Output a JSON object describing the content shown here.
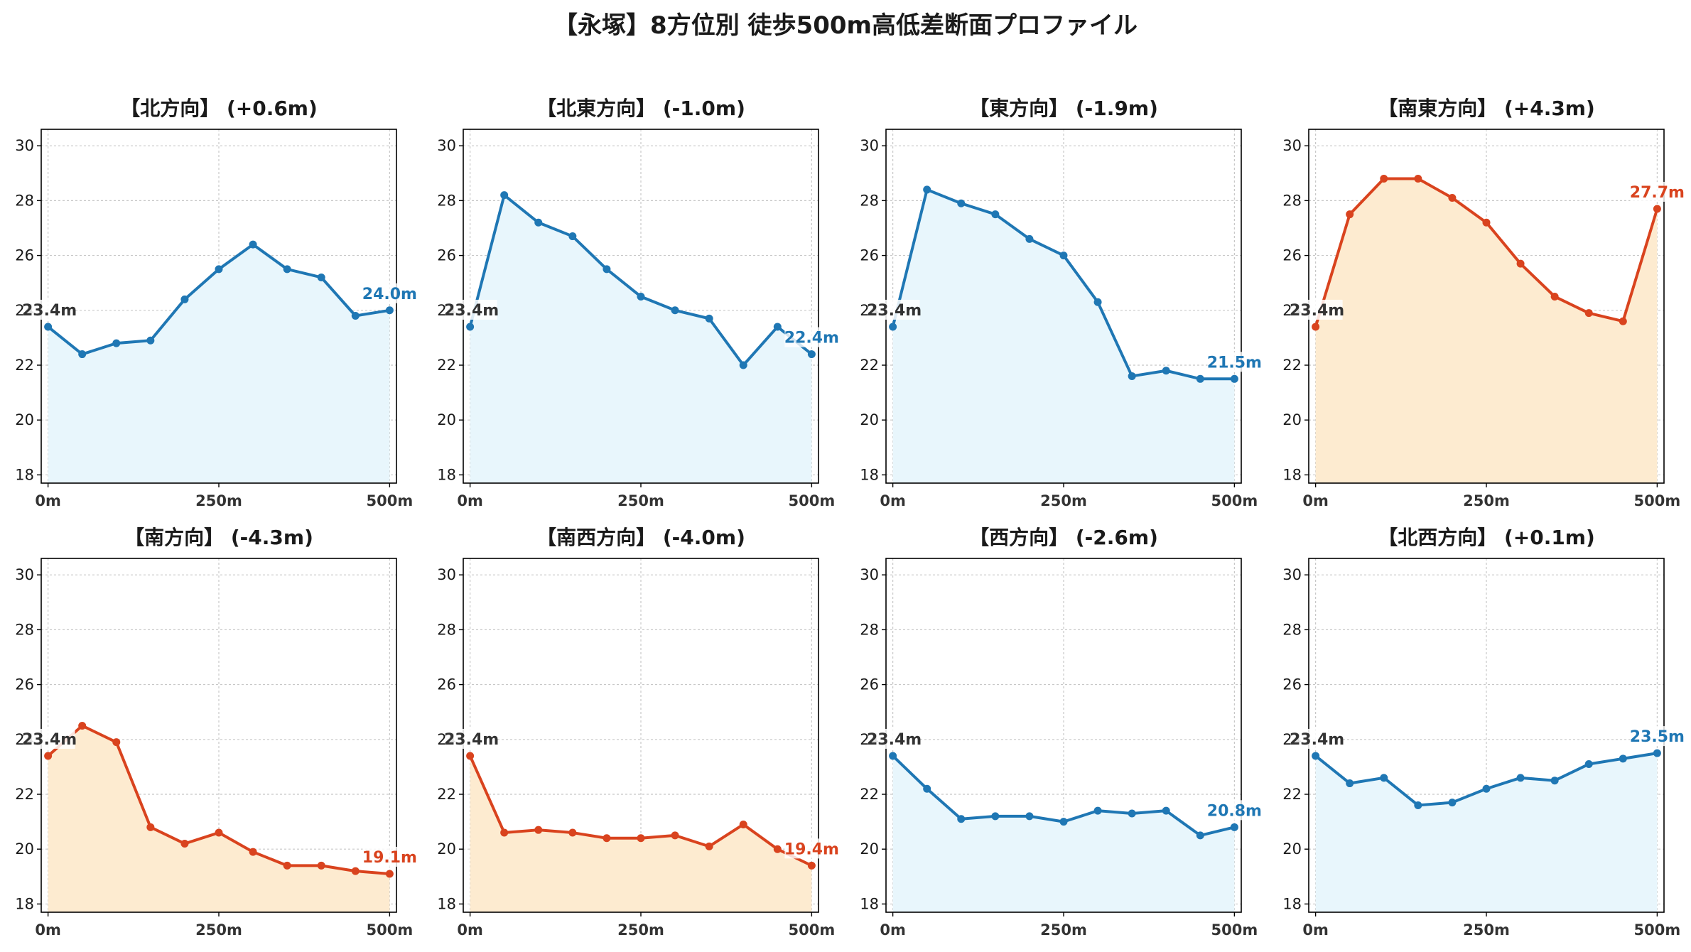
{
  "title": "【永塚】8方位別 徒歩500m高低差断面プロファイル",
  "colors": {
    "up_line": "#1f77b4",
    "up_fill": "#e8f6fc",
    "down_line": "#d9431e",
    "down_fill": "#fdebd0",
    "start_label": "#333333"
  },
  "chart_data": [
    {
      "type": "area",
      "title": "【北方向】 (+0.6m)",
      "theme": "blue",
      "x": [
        0,
        50,
        100,
        150,
        200,
        250,
        300,
        350,
        400,
        450,
        500
      ],
      "y": [
        23.4,
        22.4,
        22.8,
        22.9,
        24.4,
        25.5,
        26.4,
        25.5,
        25.2,
        23.8,
        24.0
      ],
      "xticks": [
        "0m",
        "250m",
        "500m"
      ],
      "yticks": [
        "18",
        "20",
        "22",
        "24",
        "26",
        "28",
        "30"
      ],
      "ylim": [
        17.7,
        30.6
      ],
      "start_label": "23.4m",
      "end_label": "24.0m",
      "grid": true
    },
    {
      "type": "area",
      "title": "【北東方向】 (-1.0m)",
      "theme": "blue",
      "x": [
        0,
        50,
        100,
        150,
        200,
        250,
        300,
        350,
        400,
        450,
        500
      ],
      "y": [
        23.4,
        28.2,
        27.2,
        26.7,
        25.5,
        24.5,
        24.0,
        23.7,
        22.0,
        23.4,
        22.4
      ],
      "xticks": [
        "0m",
        "250m",
        "500m"
      ],
      "yticks": [
        "18",
        "20",
        "22",
        "24",
        "26",
        "28",
        "30"
      ],
      "ylim": [
        17.7,
        30.6
      ],
      "start_label": "23.4m",
      "end_label": "22.4m",
      "grid": true
    },
    {
      "type": "area",
      "title": "【東方向】 (-1.9m)",
      "theme": "blue",
      "x": [
        0,
        50,
        100,
        150,
        200,
        250,
        300,
        350,
        400,
        450,
        500
      ],
      "y": [
        23.4,
        28.4,
        27.9,
        27.5,
        26.6,
        26.0,
        24.3,
        21.6,
        21.8,
        21.5,
        21.5
      ],
      "xticks": [
        "0m",
        "250m",
        "500m"
      ],
      "yticks": [
        "18",
        "20",
        "22",
        "24",
        "26",
        "28",
        "30"
      ],
      "ylim": [
        17.7,
        30.6
      ],
      "start_label": "23.4m",
      "end_label": "21.5m",
      "grid": true
    },
    {
      "type": "area",
      "title": "【南東方向】 (+4.3m)",
      "theme": "orange",
      "x": [
        0,
        50,
        100,
        150,
        200,
        250,
        300,
        350,
        400,
        450,
        500
      ],
      "y": [
        23.4,
        27.5,
        28.8,
        28.8,
        28.1,
        27.2,
        25.7,
        24.5,
        23.9,
        23.6,
        27.7
      ],
      "xticks": [
        "0m",
        "250m",
        "500m"
      ],
      "yticks": [
        "18",
        "20",
        "22",
        "24",
        "26",
        "28",
        "30"
      ],
      "ylim": [
        17.7,
        30.6
      ],
      "start_label": "23.4m",
      "end_label": "27.7m",
      "grid": true
    },
    {
      "type": "area",
      "title": "【南方向】 (-4.3m)",
      "theme": "orange",
      "x": [
        0,
        50,
        100,
        150,
        200,
        250,
        300,
        350,
        400,
        450,
        500
      ],
      "y": [
        23.4,
        24.5,
        23.9,
        20.8,
        20.2,
        20.6,
        19.9,
        19.4,
        19.4,
        19.2,
        19.1
      ],
      "xticks": [
        "0m",
        "250m",
        "500m"
      ],
      "yticks": [
        "18",
        "20",
        "22",
        "24",
        "26",
        "28",
        "30"
      ],
      "ylim": [
        17.7,
        30.6
      ],
      "start_label": "23.4m",
      "end_label": "19.1m",
      "grid": true
    },
    {
      "type": "area",
      "title": "【南西方向】 (-4.0m)",
      "theme": "orange",
      "x": [
        0,
        50,
        100,
        150,
        200,
        250,
        300,
        350,
        400,
        450,
        500
      ],
      "y": [
        23.4,
        20.6,
        20.7,
        20.6,
        20.4,
        20.4,
        20.5,
        20.1,
        20.9,
        20.0,
        19.4
      ],
      "xticks": [
        "0m",
        "250m",
        "500m"
      ],
      "yticks": [
        "18",
        "20",
        "22",
        "24",
        "26",
        "28",
        "30"
      ],
      "ylim": [
        17.7,
        30.6
      ],
      "start_label": "23.4m",
      "end_label": "19.4m",
      "grid": true
    },
    {
      "type": "area",
      "title": "【西方向】 (-2.6m)",
      "theme": "blue",
      "x": [
        0,
        50,
        100,
        150,
        200,
        250,
        300,
        350,
        400,
        450,
        500
      ],
      "y": [
        23.4,
        22.2,
        21.1,
        21.2,
        21.2,
        21.0,
        21.4,
        21.3,
        21.4,
        20.5,
        20.8
      ],
      "xticks": [
        "0m",
        "250m",
        "500m"
      ],
      "yticks": [
        "18",
        "20",
        "22",
        "24",
        "26",
        "28",
        "30"
      ],
      "ylim": [
        17.7,
        30.6
      ],
      "start_label": "23.4m",
      "end_label": "20.8m",
      "grid": true
    },
    {
      "type": "area",
      "title": "【北西方向】 (+0.1m)",
      "theme": "blue",
      "x": [
        0,
        50,
        100,
        150,
        200,
        250,
        300,
        350,
        400,
        450,
        500
      ],
      "y": [
        23.4,
        22.4,
        22.6,
        21.6,
        21.7,
        22.2,
        22.6,
        22.5,
        23.1,
        23.3,
        23.5
      ],
      "xticks": [
        "0m",
        "250m",
        "500m"
      ],
      "yticks": [
        "18",
        "20",
        "22",
        "24",
        "26",
        "28",
        "30"
      ],
      "ylim": [
        17.7,
        30.6
      ],
      "start_label": "23.4m",
      "end_label": "23.5m",
      "grid": true
    }
  ]
}
